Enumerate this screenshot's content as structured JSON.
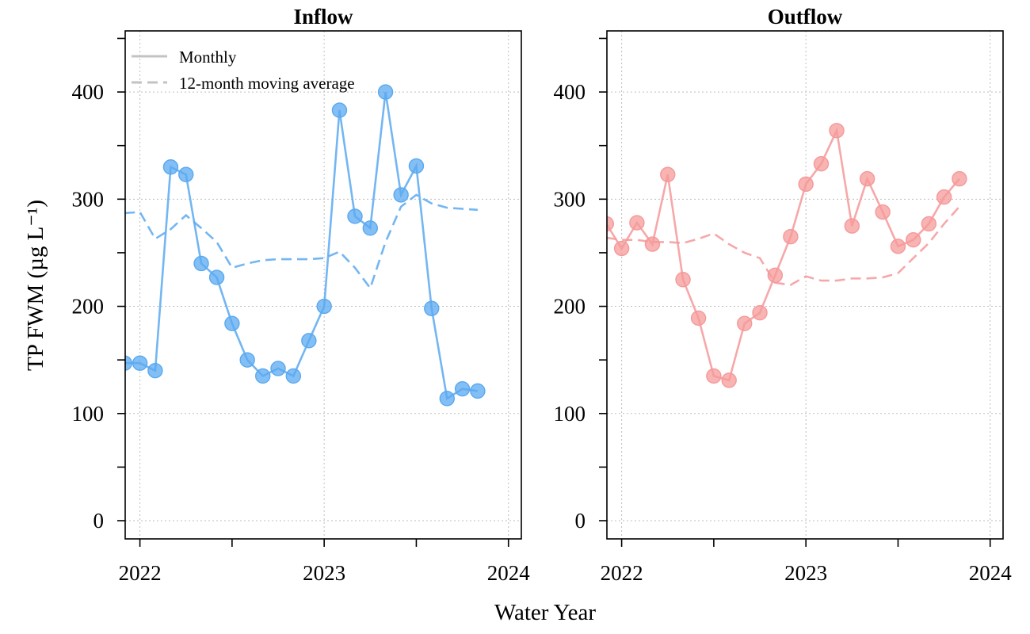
{
  "chart_data": [
    {
      "type": "line",
      "title": "Inflow",
      "ylabel": "TP FWM (µg L⁻¹)",
      "xlabel": "Water Year",
      "xlim": [
        2021.92,
        2024.07
      ],
      "ylim": [
        -17,
        457
      ],
      "x_ticks": [
        2022,
        2023,
        2024
      ],
      "y_ticks": [
        0,
        100,
        200,
        300,
        400
      ],
      "grid": true,
      "color": "#5aa9f0",
      "legend": {
        "position": "top-left",
        "entries": [
          {
            "label": "Monthly",
            "style": "solid"
          },
          {
            "label": "12-month moving average",
            "style": "dashed"
          }
        ]
      },
      "series": [
        {
          "name": "Monthly",
          "style": "solid",
          "x": [
            2021.917,
            2022.0,
            2022.083,
            2022.167,
            2022.25,
            2022.333,
            2022.417,
            2022.5,
            2022.583,
            2022.667,
            2022.75,
            2022.833,
            2022.917,
            2023.0,
            2023.083,
            2023.167,
            2023.25,
            2023.333,
            2023.417,
            2023.5,
            2023.583,
            2023.667,
            2023.75,
            2023.833
          ],
          "y": [
            147,
            147,
            140,
            330,
            323,
            240,
            227,
            184,
            150,
            135,
            142,
            135,
            168,
            200,
            383,
            284,
            273,
            400,
            304,
            331,
            198,
            114,
            123,
            121
          ]
        },
        {
          "name": "12-month moving average",
          "style": "dashed",
          "x": [
            2021.917,
            2022.0,
            2022.083,
            2022.167,
            2022.25,
            2022.333,
            2022.417,
            2022.5,
            2022.583,
            2022.667,
            2022.75,
            2022.833,
            2022.917,
            2023.0,
            2023.083,
            2023.167,
            2023.25,
            2023.333,
            2023.417,
            2023.5,
            2023.583,
            2023.667,
            2023.75,
            2023.833
          ],
          "y": [
            287,
            288,
            263,
            272,
            285,
            273,
            260,
            236,
            240,
            243,
            244,
            244,
            244,
            245,
            251,
            236,
            217,
            260,
            293,
            304,
            296,
            292,
            291,
            290
          ]
        }
      ]
    },
    {
      "type": "line",
      "title": "Outflow",
      "xlabel": "Water Year",
      "xlim": [
        2021.92,
        2024.07
      ],
      "ylim": [
        -17,
        457
      ],
      "x_ticks": [
        2022,
        2023,
        2024
      ],
      "y_ticks": [
        0,
        100,
        200,
        300,
        400
      ],
      "grid": true,
      "color": "#f5999a",
      "series": [
        {
          "name": "Monthly",
          "style": "solid",
          "x": [
            2021.917,
            2022.0,
            2022.083,
            2022.167,
            2022.25,
            2022.333,
            2022.417,
            2022.5,
            2022.583,
            2022.667,
            2022.75,
            2022.833,
            2022.917,
            2023.0,
            2023.083,
            2023.167,
            2023.25,
            2023.333,
            2023.417,
            2023.5,
            2023.583,
            2023.667,
            2023.75,
            2023.833
          ],
          "y": [
            277,
            254,
            278,
            258,
            323,
            225,
            189,
            135,
            131,
            184,
            194,
            229,
            265,
            314,
            333,
            364,
            275,
            319,
            288,
            256,
            262,
            277,
            302,
            319
          ]
        },
        {
          "name": "12-month moving average",
          "style": "dashed",
          "x": [
            2021.917,
            2022.0,
            2022.083,
            2022.167,
            2022.25,
            2022.333,
            2022.417,
            2022.5,
            2022.583,
            2022.667,
            2022.75,
            2022.833,
            2022.917,
            2023.0,
            2023.083,
            2023.167,
            2023.25,
            2023.333,
            2023.417,
            2023.5,
            2023.583,
            2023.667,
            2023.75,
            2023.833
          ],
          "y": [
            264,
            262,
            262,
            260,
            260,
            259,
            263,
            268,
            258,
            250,
            245,
            222,
            220,
            228,
            224,
            224,
            226,
            226,
            227,
            231,
            245,
            259,
            277,
            293
          ]
        }
      ]
    }
  ]
}
